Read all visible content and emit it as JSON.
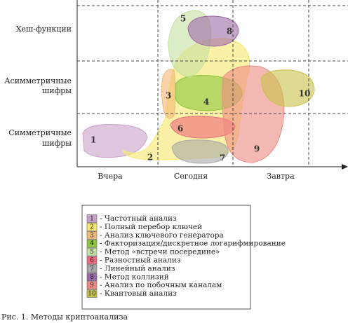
{
  "y_axis_labels": [
    [
      "Хеш-функции"
    ],
    [
      "Асимметричные",
      "шифры"
    ],
    [
      "Симметричные",
      "шифры"
    ]
  ],
  "x_axis_labels": [
    "Вчера",
    "Сегодня",
    "Завтра"
  ],
  "methods": [
    {
      "number": "1",
      "text": "- Частотный анализ",
      "color": "#c9a0c9"
    },
    {
      "number": "2",
      "text": "- Полный перебор ключей",
      "color": "#f7e86a"
    },
    {
      "number": "3",
      "text": "- Анализ ключевого генератора",
      "color": "#f3b875"
    },
    {
      "number": "4",
      "text": "- Факторизация/дискретное логарифмирование",
      "color": "#8cc63e"
    },
    {
      "number": "5",
      "text": "- Метод «встречи посередине»",
      "color": "#c5e0a0"
    },
    {
      "number": "6",
      "text": "- Разностный анализ",
      "color": "#ec6a7c"
    },
    {
      "number": "7",
      "text": "- Линейный анализ",
      "color": "#a8a8a8"
    },
    {
      "number": "8",
      "text": "- Метод коллизий",
      "color": "#9e6aa8"
    },
    {
      "number": "9",
      "text": "- Анализ по побочным каналам",
      "color": "#ee8a82"
    },
    {
      "number": "10",
      "text": "- Квантовый анализ",
      "color": "#c9c24a"
    }
  ],
  "caption": "Рис. 1. Методы криптоанализа"
}
